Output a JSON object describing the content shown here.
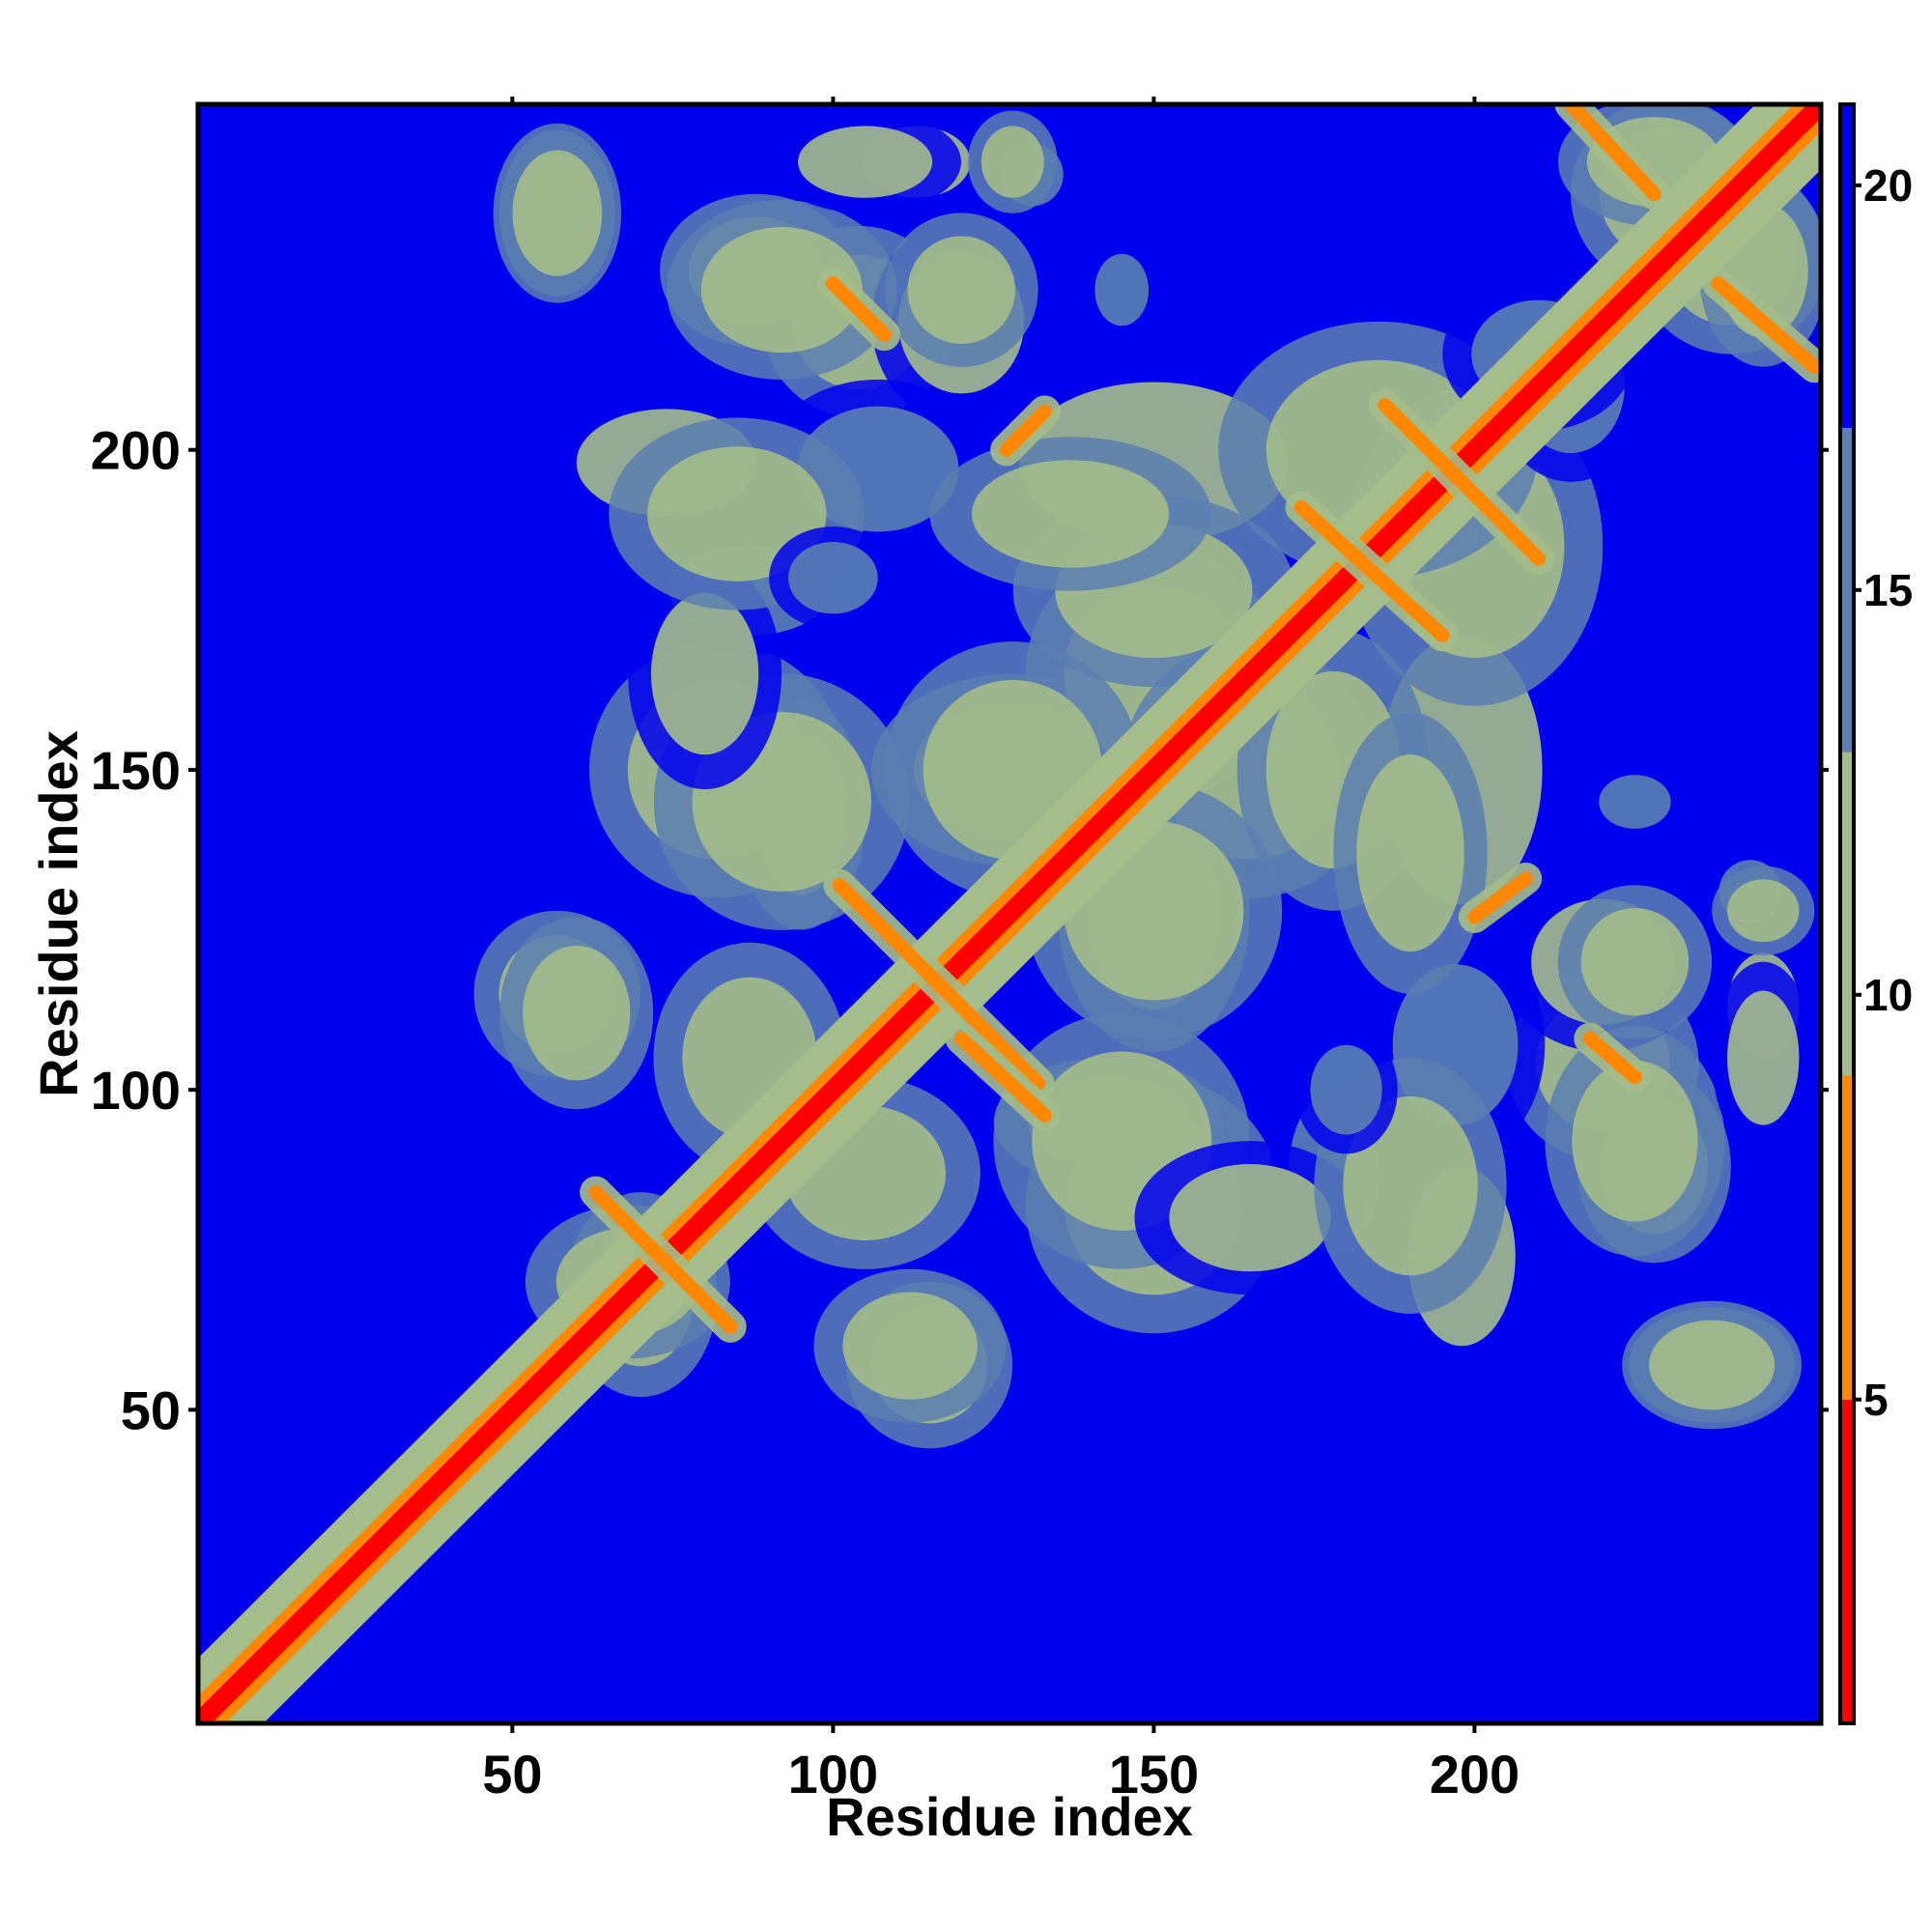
{
  "chart_data": {
    "type": "heatmap",
    "title": "",
    "xlabel": "Residue index",
    "ylabel": "Residue index",
    "xlim": [
      1,
      254
    ],
    "ylim": [
      1,
      254
    ],
    "x_ticks": [
      50,
      100,
      150,
      200
    ],
    "y_ticks": [
      50,
      100,
      150,
      200
    ],
    "colorbar": {
      "ticks": [
        5,
        10,
        15,
        20
      ],
      "range": [
        1,
        21
      ],
      "colors": [
        "#ff0000",
        "#ff8800",
        "#a5bd8a",
        "#5a7fb0",
        "#0000ee"
      ]
    },
    "background_value": 21,
    "diagonal": {
      "from": 1,
      "to": 254,
      "value": 3.5,
      "width_residues": 6
    },
    "contact_lines": [
      {
        "start": [
          63,
          84
        ],
        "end": [
          84,
          63
        ],
        "value": 7
      },
      {
        "start": [
          101,
          132
        ],
        "end": [
          132,
          101
        ],
        "value": 7
      },
      {
        "start": [
          120,
          108
        ],
        "end": [
          133,
          96
        ],
        "value": 6.5
      },
      {
        "start": [
          173,
          191
        ],
        "end": [
          195,
          171
        ],
        "value": 6.5
      },
      {
        "start": [
          186,
          207
        ],
        "end": [
          210,
          183
        ],
        "value": 6.5
      },
      {
        "start": [
          215,
          254
        ],
        "end": [
          228,
          240
        ],
        "value": 6
      },
      {
        "start": [
          238,
          226
        ],
        "end": [
          253,
          213
        ],
        "value": 6
      },
      {
        "start": [
          100,
          226
        ],
        "end": [
          108,
          218
        ],
        "value": 7
      },
      {
        "start": [
          218,
          108
        ],
        "end": [
          225,
          102
        ],
        "value": 7
      },
      {
        "start": [
          127,
          200
        ],
        "end": [
          133,
          206
        ],
        "value": 7
      },
      {
        "start": [
          200,
          127
        ],
        "end": [
          208,
          133
        ],
        "value": 7
      }
    ],
    "contact_patches": [
      {
        "x": 57,
        "y": 237,
        "rx": 9,
        "ry": 13,
        "value": 11
      },
      {
        "x": 88,
        "y": 228,
        "rx": 15,
        "ry": 12,
        "value": 11
      },
      {
        "x": 113,
        "y": 245,
        "rx": 12,
        "ry": 8,
        "value": 12
      },
      {
        "x": 131,
        "y": 243,
        "rx": 7,
        "ry": 7,
        "value": 13
      },
      {
        "x": 104,
        "y": 220,
        "rx": 15,
        "ry": 15,
        "value": 11
      },
      {
        "x": 74,
        "y": 198,
        "rx": 20,
        "ry": 12,
        "value": 12
      },
      {
        "x": 150,
        "y": 198,
        "rx": 30,
        "ry": 18,
        "value": 12
      },
      {
        "x": 120,
        "y": 220,
        "rx": 14,
        "ry": 16,
        "value": 12
      },
      {
        "x": 107,
        "y": 197,
        "rx": 18,
        "ry": 14,
        "value": 13
      },
      {
        "x": 82,
        "y": 150,
        "rx": 20,
        "ry": 20,
        "value": 11
      },
      {
        "x": 87,
        "y": 178,
        "rx": 18,
        "ry": 10,
        "value": 13
      },
      {
        "x": 95,
        "y": 143,
        "rx": 10,
        "ry": 18,
        "value": 11
      },
      {
        "x": 128,
        "y": 150,
        "rx": 22,
        "ry": 15,
        "value": 11
      },
      {
        "x": 150,
        "y": 165,
        "rx": 20,
        "ry": 20,
        "value": 10
      },
      {
        "x": 150,
        "y": 128,
        "rx": 20,
        "ry": 20,
        "value": 10
      },
      {
        "x": 178,
        "y": 150,
        "rx": 15,
        "ry": 22,
        "value": 11
      },
      {
        "x": 190,
        "y": 137,
        "rx": 12,
        "ry": 22,
        "value": 11
      },
      {
        "x": 57,
        "y": 115,
        "rx": 13,
        "ry": 13,
        "value": 11
      },
      {
        "x": 87,
        "y": 105,
        "rx": 15,
        "ry": 18,
        "value": 11
      },
      {
        "x": 145,
        "y": 92,
        "rx": 20,
        "ry": 20,
        "value": 10
      },
      {
        "x": 165,
        "y": 80,
        "rx": 18,
        "ry": 12,
        "value": 12
      },
      {
        "x": 190,
        "y": 85,
        "rx": 15,
        "ry": 20,
        "value": 11
      },
      {
        "x": 180,
        "y": 100,
        "rx": 8,
        "ry": 10,
        "value": 13
      },
      {
        "x": 225,
        "y": 120,
        "rx": 12,
        "ry": 12,
        "value": 11
      },
      {
        "x": 225,
        "y": 92,
        "rx": 14,
        "ry": 18,
        "value": 11
      },
      {
        "x": 245,
        "y": 105,
        "rx": 8,
        "ry": 15,
        "value": 12
      },
      {
        "x": 245,
        "y": 128,
        "rx": 8,
        "ry": 7,
        "value": 11
      },
      {
        "x": 225,
        "y": 145,
        "rx": 8,
        "ry": 6,
        "value": 13
      },
      {
        "x": 112,
        "y": 60,
        "rx": 15,
        "ry": 12,
        "value": 11
      },
      {
        "x": 237,
        "y": 57,
        "rx": 14,
        "ry": 10,
        "value": 11
      },
      {
        "x": 70,
        "y": 68,
        "rx": 12,
        "ry": 16,
        "value": 10
      },
      {
        "x": 200,
        "y": 185,
        "rx": 20,
        "ry": 25,
        "value": 11
      },
      {
        "x": 215,
        "y": 210,
        "rx": 12,
        "ry": 15,
        "value": 13
      },
      {
        "x": 230,
        "y": 240,
        "rx": 15,
        "ry": 15,
        "value": 10
      },
      {
        "x": 245,
        "y": 228,
        "rx": 10,
        "ry": 15,
        "value": 11
      }
    ]
  }
}
